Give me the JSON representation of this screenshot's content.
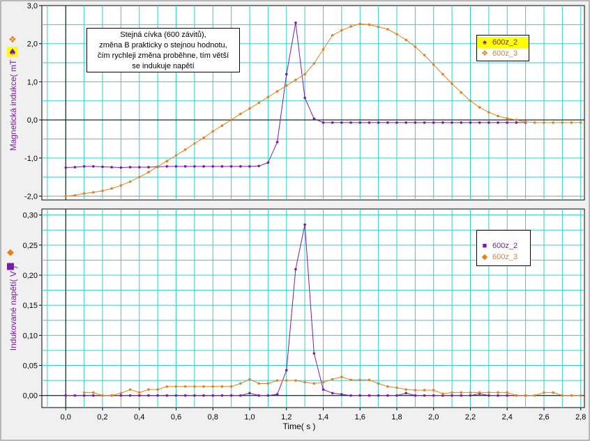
{
  "annotation": {
    "line1": "Stejná cívka (600 závitů),",
    "line2": "změna B prakticky o stejnou hodnotu,",
    "line3": "čím rychleji změna proběhne, tím větší",
    "line4": "se indukuje napětí"
  },
  "colors": {
    "purple": "#7a1aa8",
    "orange": "#e0821e",
    "grid": "#33cccc",
    "highlight": "#ffff00"
  },
  "chart_data": [
    {
      "type": "line",
      "ylabel": "Magnetická indukce( mT )",
      "xlabel": "",
      "ylim": [
        -2.1,
        3.0
      ],
      "xlim": [
        -0.13,
        2.82
      ],
      "yticks": [
        "3,0",
        "2,0",
        "1,0",
        "0,0",
        "-1,0",
        "-2,0"
      ],
      "ytick_values": [
        3,
        2,
        1,
        0,
        -1,
        -2
      ],
      "grid": true,
      "legend_position": "top-right",
      "series": [
        {
          "name": "600z_2",
          "color": "#7a1aa8",
          "x": [
            0,
            0.05,
            0.1,
            0.15,
            0.2,
            0.25,
            0.3,
            0.35,
            0.4,
            0.45,
            0.5,
            0.55,
            0.6,
            0.65,
            0.7,
            0.75,
            0.8,
            0.85,
            0.9,
            0.95,
            1.0,
            1.05,
            1.1,
            1.15,
            1.2,
            1.25,
            1.3,
            1.35,
            1.4,
            1.45,
            1.5,
            1.55,
            1.6,
            1.65,
            1.7,
            1.75,
            1.8,
            1.85,
            1.9,
            1.95,
            2.0,
            2.05,
            2.1,
            2.15,
            2.2,
            2.25,
            2.3,
            2.35,
            2.4,
            2.45,
            2.5
          ],
          "values": [
            -1.25,
            -1.24,
            -1.22,
            -1.22,
            -1.23,
            -1.24,
            -1.25,
            -1.24,
            -1.24,
            -1.24,
            -1.23,
            -1.22,
            -1.22,
            -1.22,
            -1.22,
            -1.22,
            -1.22,
            -1.22,
            -1.22,
            -1.22,
            -1.22,
            -1.21,
            -1.12,
            -0.58,
            1.2,
            2.55,
            0.58,
            0.03,
            -0.07,
            -0.07,
            -0.07,
            -0.07,
            -0.07,
            -0.07,
            -0.07,
            -0.07,
            -0.07,
            -0.07,
            -0.07,
            -0.07,
            -0.07,
            -0.07,
            -0.07,
            -0.07,
            -0.07,
            -0.07,
            -0.07,
            -0.07,
            -0.07,
            -0.07,
            -0.07
          ]
        },
        {
          "name": "600z_3",
          "color": "#e0821e",
          "x": [
            0,
            0.05,
            0.1,
            0.15,
            0.2,
            0.25,
            0.3,
            0.35,
            0.4,
            0.45,
            0.5,
            0.55,
            0.6,
            0.65,
            0.7,
            0.75,
            0.8,
            0.85,
            0.9,
            0.95,
            1.0,
            1.05,
            1.1,
            1.15,
            1.2,
            1.25,
            1.3,
            1.35,
            1.4,
            1.45,
            1.5,
            1.55,
            1.6,
            1.65,
            1.7,
            1.75,
            1.8,
            1.85,
            1.9,
            1.95,
            2.0,
            2.05,
            2.1,
            2.15,
            2.2,
            2.25,
            2.3,
            2.35,
            2.4,
            2.45,
            2.5,
            2.55,
            2.6,
            2.65,
            2.7,
            2.75,
            2.8
          ],
          "values": [
            -2.0,
            -1.98,
            -1.93,
            -1.9,
            -1.86,
            -1.8,
            -1.72,
            -1.62,
            -1.5,
            -1.37,
            -1.22,
            -1.08,
            -0.93,
            -0.78,
            -0.62,
            -0.47,
            -0.3,
            -0.15,
            0.0,
            0.16,
            0.3,
            0.45,
            0.6,
            0.75,
            0.9,
            1.05,
            1.2,
            1.48,
            1.85,
            2.22,
            2.35,
            2.45,
            2.52,
            2.5,
            2.44,
            2.38,
            2.25,
            2.1,
            1.92,
            1.7,
            1.45,
            1.2,
            0.95,
            0.72,
            0.5,
            0.33,
            0.2,
            0.1,
            0.04,
            0.0,
            -0.05,
            -0.07,
            -0.07,
            -0.07,
            -0.07,
            -0.07,
            -0.07
          ]
        }
      ]
    },
    {
      "type": "line",
      "ylabel": "Indukované napětí( V )",
      "xlabel": "Time( s )",
      "ylim": [
        -0.02,
        0.31
      ],
      "xlim": [
        -0.13,
        2.82
      ],
      "yticks": [
        "0,30",
        "0,25",
        "0,20",
        "0,15",
        "0,10",
        "0,05",
        "0,00"
      ],
      "ytick_values": [
        0.3,
        0.25,
        0.2,
        0.15,
        0.1,
        0.05,
        0.0
      ],
      "xticks": [
        "0,0",
        "0,2",
        "0,4",
        "0,6",
        "0,8",
        "1,0",
        "1,2",
        "1,4",
        "1,6",
        "1,8",
        "2,0",
        "2,2",
        "2,4",
        "2,6",
        "2,8"
      ],
      "xtick_values": [
        0,
        0.2,
        0.4,
        0.6,
        0.8,
        1.0,
        1.2,
        1.4,
        1.6,
        1.8,
        2.0,
        2.2,
        2.4,
        2.6,
        2.8
      ],
      "grid": true,
      "legend_position": "top-right",
      "series": [
        {
          "name": "600z_2",
          "color": "#7a1aa8",
          "x": [
            0,
            0.05,
            0.1,
            0.15,
            0.2,
            0.25,
            0.3,
            0.35,
            0.4,
            0.45,
            0.5,
            0.55,
            0.6,
            0.65,
            0.7,
            0.75,
            0.8,
            0.85,
            0.9,
            0.95,
            1.0,
            1.05,
            1.1,
            1.15,
            1.2,
            1.25,
            1.3,
            1.35,
            1.4,
            1.45,
            1.5,
            1.55,
            1.6,
            1.65,
            1.7,
            1.75,
            1.8,
            1.85,
            1.9,
            1.95,
            2.0,
            2.05,
            2.1,
            2.15,
            2.2,
            2.25,
            2.3,
            2.35,
            2.4,
            2.45,
            2.5
          ],
          "values": [
            0,
            0,
            0,
            0,
            0,
            0,
            0,
            0,
            0,
            0,
            0,
            0,
            0,
            0,
            0,
            0,
            0,
            0,
            0,
            0,
            0.004,
            0,
            0,
            0.002,
            0.042,
            0.21,
            0.284,
            0.07,
            0.01,
            0.004,
            0.002,
            0,
            0,
            0,
            0,
            0,
            0,
            0.004,
            0,
            0,
            0,
            0,
            0,
            0,
            0,
            0.003,
            0,
            0,
            0,
            0,
            0
          ]
        },
        {
          "name": "600z_3",
          "color": "#e0821e",
          "x": [
            0.1,
            0.15,
            0.2,
            0.25,
            0.3,
            0.35,
            0.4,
            0.45,
            0.5,
            0.55,
            0.6,
            0.65,
            0.7,
            0.75,
            0.8,
            0.85,
            0.9,
            0.95,
            1.0,
            1.05,
            1.1,
            1.15,
            1.2,
            1.25,
            1.3,
            1.35,
            1.4,
            1.45,
            1.5,
            1.55,
            1.6,
            1.65,
            1.7,
            1.75,
            1.8,
            1.85,
            1.9,
            1.95,
            2.0,
            2.05,
            2.1,
            2.15,
            2.2,
            2.25,
            2.3,
            2.35,
            2.4,
            2.45,
            2.5,
            2.55,
            2.6,
            2.65,
            2.7,
            2.75,
            2.8
          ],
          "values": [
            0.005,
            0.005,
            0,
            0,
            0.004,
            0.01,
            0.005,
            0.01,
            0.01,
            0.015,
            0.015,
            0.015,
            0.015,
            0.015,
            0.015,
            0.015,
            0.015,
            0.02,
            0.027,
            0.02,
            0.02,
            0.025,
            0.025,
            0.025,
            0.022,
            0.02,
            0.022,
            0.027,
            0.031,
            0.026,
            0.026,
            0.026,
            0.02,
            0.015,
            0.013,
            0.01,
            0.009,
            0.009,
            0.009,
            0.003,
            0.005,
            0.005,
            0.005,
            0.005,
            0.005,
            0.005,
            0.005,
            0,
            0,
            0,
            0.005,
            0.005,
            0,
            0,
            0
          ]
        }
      ]
    }
  ]
}
